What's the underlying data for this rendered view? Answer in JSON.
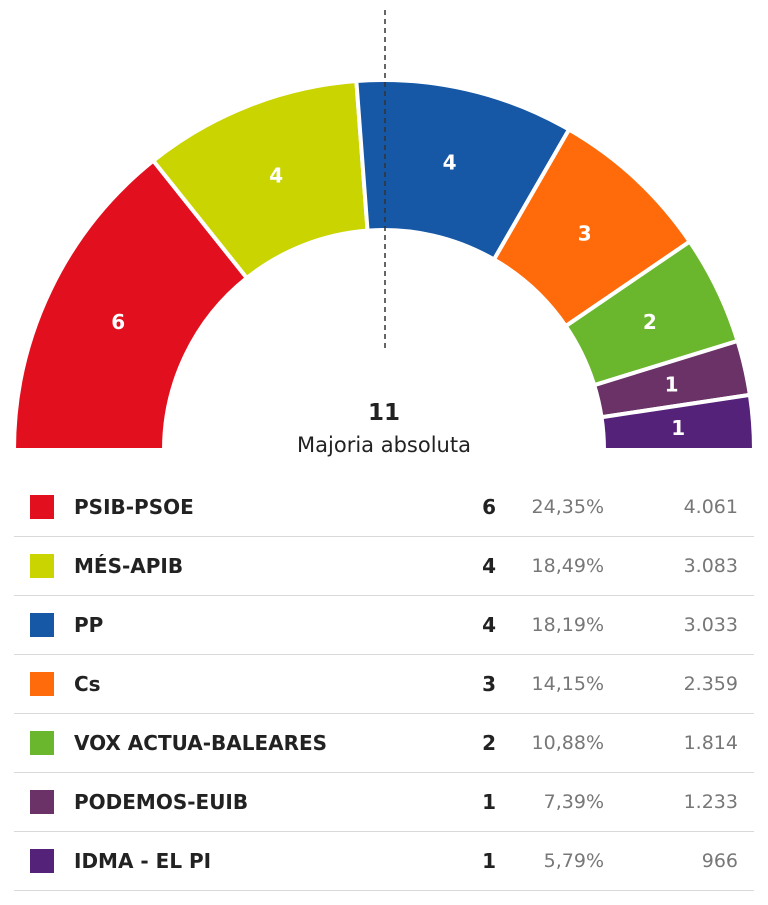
{
  "chart_data": {
    "type": "hemicycle",
    "total_seats": 21,
    "majority": {
      "value": "11",
      "label": "Majoria absoluta"
    },
    "series": [
      {
        "party": "PSIB-PSOE",
        "seats": 6,
        "percent": "24,35%",
        "votes": "4.061",
        "color": "#e2101f"
      },
      {
        "party": "MÉS-APIB",
        "seats": 4,
        "percent": "18,49%",
        "votes": "3.083",
        "color": "#c9d400"
      },
      {
        "party": "PP",
        "seats": 4,
        "percent": "18,19%",
        "votes": "3.033",
        "color": "#1658a6"
      },
      {
        "party": "Cs",
        "seats": 3,
        "percent": "14,15%",
        "votes": "2.359",
        "color": "#ff6a0a"
      },
      {
        "party": "VOX ACTUA-BALEARES",
        "seats": 2,
        "percent": "10,88%",
        "votes": "1.814",
        "color": "#6ab72e"
      },
      {
        "party": "PODEMOS-EUIB",
        "seats": 1,
        "percent": "7,39%",
        "votes": "1.233",
        "color": "#6a3266"
      },
      {
        "party": "IDMA - EL PI",
        "seats": 1,
        "percent": "5,79%",
        "votes": "966",
        "color": "#55227a"
      }
    ]
  }
}
